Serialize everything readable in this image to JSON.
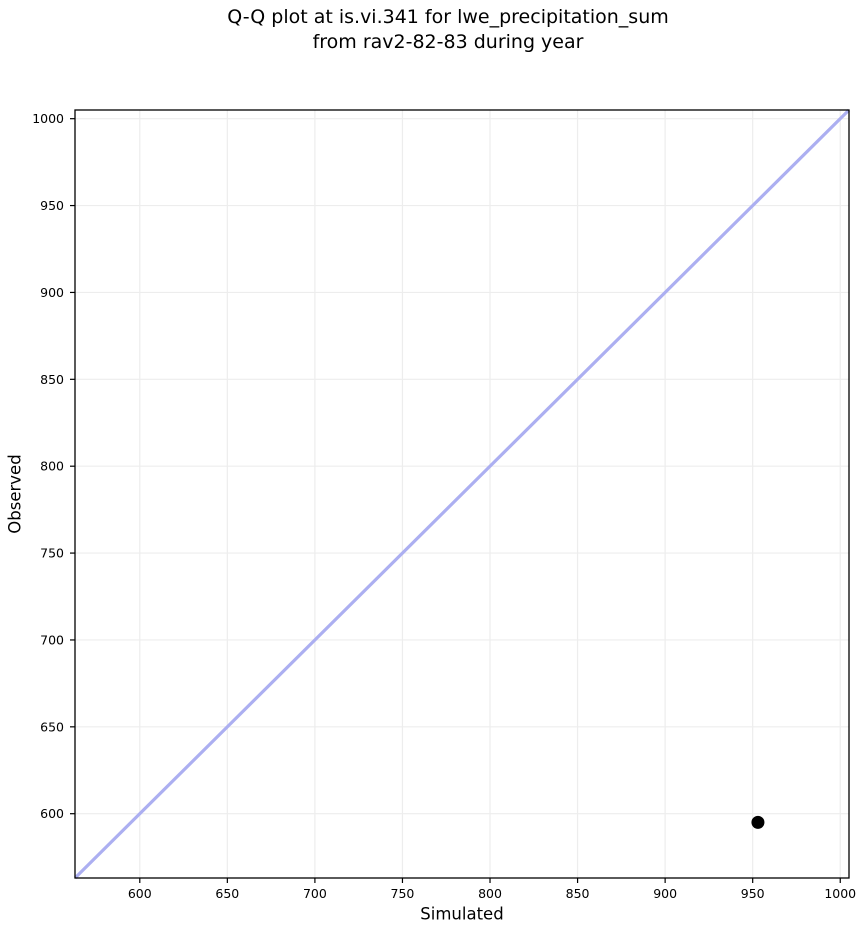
{
  "figure": {
    "title_line1": "Q-Q plot at is.vi.341 for lwe_precipitation_sum",
    "title_line2": "from rav2-82-83 during year"
  },
  "chart_data": {
    "type": "scatter",
    "title": "Q-Q plot at is.vi.341 for lwe_precipitation_sum\nfrom rav2-82-83 during year",
    "xlabel": "Simulated",
    "ylabel": "Observed",
    "xlim": [
      563,
      1005
    ],
    "ylim": [
      563,
      1005
    ],
    "xticks": [
      600,
      650,
      700,
      750,
      800,
      850,
      900,
      950,
      1000
    ],
    "yticks": [
      600,
      650,
      700,
      750,
      800,
      850,
      900,
      950,
      1000
    ],
    "grid": true,
    "legend": false,
    "series": [
      {
        "name": "identity-line",
        "type": "line",
        "points": [
          [
            563,
            563
          ],
          [
            1005,
            1005
          ]
        ],
        "color": "#acaff1",
        "width": 3.2
      },
      {
        "name": "qq-points",
        "type": "scatter",
        "points": [
          [
            953,
            595
          ]
        ],
        "color": "#000000",
        "radius": 6.5
      }
    ],
    "colors": {
      "grid": "#ededed",
      "spine": "#000000",
      "background": "#ffffff",
      "text": "#000000"
    }
  }
}
